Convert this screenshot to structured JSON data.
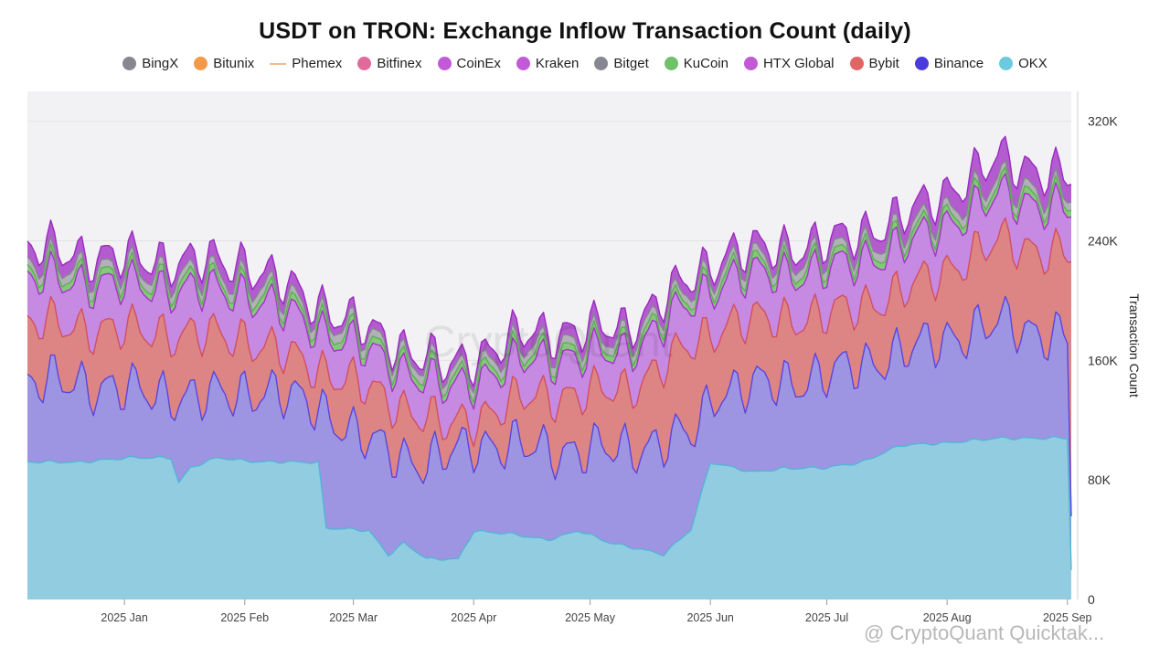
{
  "chart_data": {
    "type": "area",
    "stacked": true,
    "title": "USDT on TRON: Exchange Inflow Transaction Count (daily)",
    "ylabel": "Transaction Count",
    "ylim": [
      0,
      340000
    ],
    "yticks": [
      0,
      80000,
      160000,
      240000,
      320000
    ],
    "ytick_labels": [
      "0",
      "80K",
      "160K",
      "240K",
      "320K"
    ],
    "xticks": [
      {
        "date": "2025-01-01",
        "label": "2025 Jan"
      },
      {
        "date": "2025-02-01",
        "label": "2025 Feb"
      },
      {
        "date": "2025-03-01",
        "label": "2025 Mar"
      },
      {
        "date": "2025-04-01",
        "label": "2025 Apr"
      },
      {
        "date": "2025-05-01",
        "label": "2025 May"
      },
      {
        "date": "2025-06-01",
        "label": "2025 Jun"
      },
      {
        "date": "2025-07-01",
        "label": "2025 Jul"
      },
      {
        "date": "2025-08-01",
        "label": "2025 Aug"
      },
      {
        "date": "2025-09-01",
        "label": "2025 Sep"
      }
    ],
    "x_range": [
      "2024-12-07",
      "2025-09-02"
    ],
    "legend_position": "top",
    "grid": true,
    "legend": [
      {
        "name": "BingX",
        "color": "#878791",
        "style": "dot"
      },
      {
        "name": "Bitunix",
        "color": "#f2994a",
        "style": "dot"
      },
      {
        "name": "Phemex",
        "color": "#f5b98f",
        "style": "line"
      },
      {
        "name": "Bitfinex",
        "color": "#e06a9a",
        "style": "dot"
      },
      {
        "name": "CoinEx",
        "color": "#c259d6",
        "style": "dot"
      },
      {
        "name": "Kraken",
        "color": "#c259d6",
        "style": "dot"
      },
      {
        "name": "Bitget",
        "color": "#878791",
        "style": "dot"
      },
      {
        "name": "KuCoin",
        "color": "#6fc16a",
        "style": "dot"
      },
      {
        "name": "HTX Global",
        "color": "#c259d6",
        "style": "dot"
      },
      {
        "name": "Bybit",
        "color": "#e06666",
        "style": "dot"
      },
      {
        "name": "Binance",
        "color": "#4b3bdc",
        "style": "dot"
      },
      {
        "name": "OKX",
        "color": "#6cc9e0",
        "style": "dot"
      }
    ],
    "stack_order": [
      "OKX",
      "Binance",
      "Bybit",
      "HTX Global",
      "KuCoin",
      "Bitget",
      "Kraken"
    ],
    "series_colors": {
      "OKX": {
        "fill": "#92cce0",
        "line": "#55b4d6"
      },
      "Binance": {
        "fill": "#9d95e2",
        "line": "#5a45dd"
      },
      "Bybit": {
        "fill": "#dd8585",
        "line": "#d24f5e"
      },
      "HTX Global": {
        "fill": "#c68ae2",
        "line": "#a535c8"
      },
      "KuCoin": {
        "fill": "#84c879",
        "line": "#5fae55"
      },
      "Bitget": {
        "fill": "#b1b1b7",
        "line": "#85858f"
      },
      "Kraken": {
        "fill": "#b35ccf",
        "line": "#9b2bc0"
      }
    },
    "series_approx": [
      {
        "name": "OKX",
        "points": [
          [
            "2024-12-07",
            92000
          ],
          [
            "2024-12-20",
            92000
          ],
          [
            "2025-01-04",
            95000
          ],
          [
            "2025-01-13",
            95000
          ],
          [
            "2025-01-15",
            78000
          ],
          [
            "2025-01-18",
            88000
          ],
          [
            "2025-01-25",
            95000
          ],
          [
            "2025-02-05",
            92000
          ],
          [
            "2025-02-20",
            92000
          ],
          [
            "2025-02-22",
            48000
          ],
          [
            "2025-03-05",
            46000
          ],
          [
            "2025-03-10",
            30000
          ],
          [
            "2025-03-14",
            38000
          ],
          [
            "2025-03-20",
            27000
          ],
          [
            "2025-03-28",
            27000
          ],
          [
            "2025-04-01",
            46000
          ],
          [
            "2025-04-10",
            44000
          ],
          [
            "2025-04-20",
            40000
          ],
          [
            "2025-04-28",
            46000
          ],
          [
            "2025-05-06",
            38000
          ],
          [
            "2025-05-12",
            35000
          ],
          [
            "2025-05-20",
            30000
          ],
          [
            "2025-05-27",
            47000
          ],
          [
            "2025-06-01",
            92000
          ],
          [
            "2025-06-12",
            85000
          ],
          [
            "2025-06-20",
            88000
          ],
          [
            "2025-07-01",
            88000
          ],
          [
            "2025-07-10",
            92000
          ],
          [
            "2025-07-20",
            103000
          ],
          [
            "2025-08-01",
            105000
          ],
          [
            "2025-08-15",
            108000
          ],
          [
            "2025-09-01",
            108000
          ],
          [
            "2025-09-02",
            20000
          ]
        ]
      },
      {
        "name": "Binance",
        "points": [
          [
            "2024-12-07",
            145000
          ],
          [
            "2024-12-20",
            145000
          ],
          [
            "2025-01-01",
            140000
          ],
          [
            "2025-01-20",
            135000
          ],
          [
            "2025-02-05",
            140000
          ],
          [
            "2025-02-20",
            130000
          ],
          [
            "2025-03-01",
            110000
          ],
          [
            "2025-03-20",
            90000
          ],
          [
            "2025-04-01",
            105000
          ],
          [
            "2025-04-20",
            100000
          ],
          [
            "2025-05-10",
            100000
          ],
          [
            "2025-05-27",
            110000
          ],
          [
            "2025-06-03",
            140000
          ],
          [
            "2025-06-20",
            145000
          ],
          [
            "2025-07-01",
            150000
          ],
          [
            "2025-07-20",
            165000
          ],
          [
            "2025-08-01",
            175000
          ],
          [
            "2025-08-15",
            185000
          ],
          [
            "2025-09-01",
            175000
          ],
          [
            "2025-09-02",
            60000
          ]
        ]
      },
      {
        "name": "Bybit",
        "points": [
          [
            "2024-12-07",
            185000
          ],
          [
            "2025-01-01",
            180000
          ],
          [
            "2025-02-01",
            175000
          ],
          [
            "2025-03-01",
            145000
          ],
          [
            "2025-03-25",
            115000
          ],
          [
            "2025-04-15",
            135000
          ],
          [
            "2025-05-10",
            140000
          ],
          [
            "2025-06-05",
            185000
          ],
          [
            "2025-07-01",
            190000
          ],
          [
            "2025-07-20",
            205000
          ],
          [
            "2025-08-15",
            240000
          ],
          [
            "2025-09-01",
            230000
          ]
        ]
      },
      {
        "name": "HTX Global",
        "points": [
          [
            "2024-12-07",
            215000
          ],
          [
            "2025-01-01",
            210000
          ],
          [
            "2025-02-01",
            205000
          ],
          [
            "2025-03-01",
            170000
          ],
          [
            "2025-03-25",
            140000
          ],
          [
            "2025-04-15",
            160000
          ],
          [
            "2025-05-10",
            165000
          ],
          [
            "2025-06-05",
            215000
          ],
          [
            "2025-07-01",
            220000
          ],
          [
            "2025-07-20",
            235000
          ],
          [
            "2025-08-15",
            270000
          ],
          [
            "2025-09-01",
            260000
          ]
        ]
      },
      {
        "name": "Kraken",
        "points": [
          [
            "2024-12-07",
            235000
          ],
          [
            "2025-01-01",
            228000
          ],
          [
            "2025-02-01",
            225000
          ],
          [
            "2025-03-01",
            185000
          ],
          [
            "2025-03-25",
            155000
          ],
          [
            "2025-04-15",
            178000
          ],
          [
            "2025-05-10",
            182000
          ],
          [
            "2025-06-05",
            232000
          ],
          [
            "2025-07-01",
            238000
          ],
          [
            "2025-07-20",
            255000
          ],
          [
            "2025-08-15",
            295000
          ],
          [
            "2025-09-01",
            282000
          ]
        ]
      }
    ],
    "watermark": "CryptoQuant"
  },
  "footer": {
    "credit": "@ CryptoQuant Quicktak..."
  }
}
